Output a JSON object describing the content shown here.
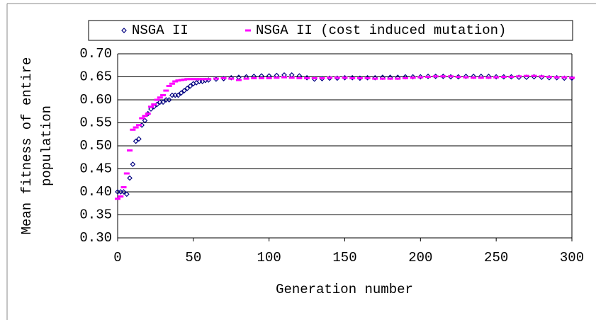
{
  "chart_data": {
    "type": "scatter",
    "xlabel": "Generation number",
    "ylabel": [
      "Mean fitness of entire",
      "population"
    ],
    "xlim": [
      0,
      300
    ],
    "ylim": [
      0.3,
      0.7
    ],
    "xticks": [
      0,
      50,
      100,
      150,
      200,
      250,
      300
    ],
    "yticks": [
      {
        "value": 0.3,
        "label": "0.30"
      },
      {
        "value": 0.35,
        "label": "0.35"
      },
      {
        "value": 0.4,
        "label": "0.40"
      },
      {
        "value": 0.45,
        "label": "0.45"
      },
      {
        "value": 0.5,
        "label": "0.50"
      },
      {
        "value": 0.55,
        "label": "0.55"
      },
      {
        "value": 0.6,
        "label": "0.60"
      },
      {
        "value": 0.65,
        "label": "0.65"
      },
      {
        "value": 0.7,
        "label": "0.70"
      }
    ],
    "grid": true,
    "legend": "top",
    "x": [
      0,
      2,
      4,
      6,
      8,
      10,
      12,
      14,
      16,
      18,
      20,
      22,
      24,
      26,
      28,
      30,
      32,
      34,
      36,
      38,
      40,
      42,
      44,
      46,
      48,
      50,
      52,
      54,
      56,
      58,
      60,
      65,
      70,
      75,
      80,
      85,
      90,
      95,
      100,
      105,
      110,
      115,
      120,
      125,
      130,
      135,
      140,
      145,
      150,
      155,
      160,
      165,
      170,
      175,
      180,
      185,
      190,
      195,
      200,
      205,
      210,
      215,
      220,
      225,
      230,
      235,
      240,
      245,
      250,
      255,
      260,
      265,
      270,
      275,
      280,
      285,
      290,
      295,
      300
    ],
    "series": [
      {
        "name": "NSGA II",
        "color": "#000080",
        "marker": "diamond",
        "values": [
          0.4,
          0.4,
          0.4,
          0.395,
          0.43,
          0.46,
          0.51,
          0.515,
          0.545,
          0.555,
          0.57,
          0.58,
          0.585,
          0.59,
          0.595,
          0.595,
          0.6,
          0.6,
          0.61,
          0.61,
          0.61,
          0.615,
          0.62,
          0.625,
          0.63,
          0.635,
          0.637,
          0.64,
          0.64,
          0.642,
          0.643,
          0.645,
          0.646,
          0.648,
          0.649,
          0.65,
          0.651,
          0.652,
          0.652,
          0.653,
          0.654,
          0.654,
          0.652,
          0.648,
          0.645,
          0.646,
          0.647,
          0.647,
          0.648,
          0.648,
          0.647,
          0.648,
          0.648,
          0.649,
          0.649,
          0.649,
          0.65,
          0.65,
          0.65,
          0.651,
          0.651,
          0.651,
          0.65,
          0.65,
          0.651,
          0.651,
          0.651,
          0.651,
          0.65,
          0.65,
          0.65,
          0.649,
          0.649,
          0.65,
          0.649,
          0.648,
          0.648,
          0.647,
          0.647
        ]
      },
      {
        "name": "NSGA II (cost induced mutation)",
        "color": "#ff00ff",
        "marker": "dash",
        "values": [
          0.385,
          0.39,
          0.41,
          0.44,
          0.49,
          0.535,
          0.54,
          0.545,
          0.56,
          0.565,
          0.57,
          0.585,
          0.59,
          0.6,
          0.605,
          0.61,
          0.62,
          0.63,
          0.635,
          0.64,
          0.642,
          0.643,
          0.644,
          0.645,
          0.645,
          0.645,
          0.645,
          0.645,
          0.645,
          0.645,
          0.645,
          0.646,
          0.647,
          0.646,
          0.643,
          0.646,
          0.647,
          0.647,
          0.647,
          0.648,
          0.649,
          0.648,
          0.647,
          0.647,
          0.647,
          0.647,
          0.648,
          0.648,
          0.648,
          0.647,
          0.647,
          0.647,
          0.646,
          0.646,
          0.646,
          0.646,
          0.647,
          0.648,
          0.649,
          0.65,
          0.651,
          0.651,
          0.651,
          0.65,
          0.649,
          0.648,
          0.648,
          0.648,
          0.649,
          0.65,
          0.65,
          0.651,
          0.652,
          0.652,
          0.651,
          0.65,
          0.649,
          0.649,
          0.648
        ]
      }
    ]
  }
}
